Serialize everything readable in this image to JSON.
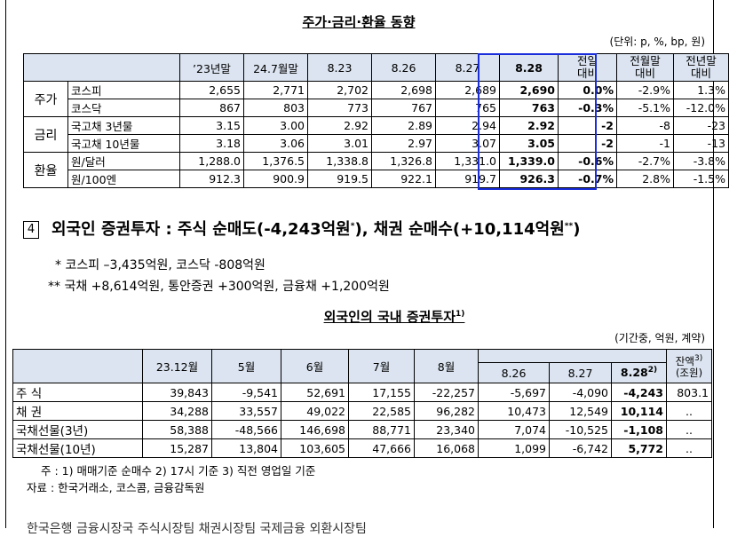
{
  "t1": {
    "title": "주가·금리·환율 동향",
    "unit": "(단위: p, %, bp, 원)",
    "headers": [
      "’23년말",
      "24.7월말",
      "8.23",
      "8.26",
      "8.27",
      "8.28",
      "전일\n대비",
      "전월말\n대비",
      "전년말\n대비"
    ],
    "groups": [
      {
        "cat": "주가",
        "rows": [
          {
            "name": "코스피",
            "vals": [
              "2,655",
              "2,771",
              "2,702",
              "2,698",
              "2,689",
              "2,690",
              "0.0%",
              "-2.9%",
              "1.3%"
            ]
          },
          {
            "name": "코스닥",
            "vals": [
              "867",
              "803",
              "773",
              "767",
              "765",
              "763",
              "-0.3%",
              "-5.1%",
              "-12.0%"
            ]
          }
        ]
      },
      {
        "cat": "금리",
        "rows": [
          {
            "name": "국고채 3년물",
            "vals": [
              "3.15",
              "3.00",
              "2.92",
              "2.89",
              "2.94",
              "2.92",
              "-2",
              "-8",
              "-23"
            ]
          },
          {
            "name": "국고채 10년물",
            "vals": [
              "3.18",
              "3.06",
              "3.01",
              "2.97",
              "3.07",
              "3.05",
              "-2",
              "-1",
              "-13"
            ]
          }
        ]
      },
      {
        "cat": "환율",
        "rows": [
          {
            "name": "원/달러",
            "vals": [
              "1,288.0",
              "1,376.5",
              "1,338.8",
              "1,326.8",
              "1,331.0",
              "1,339.0",
              "-0.6%",
              "-2.7%",
              "-3.8%"
            ]
          },
          {
            "name": "원/100엔",
            "vals": [
              "912.3",
              "900.9",
              "919.5",
              "922.1",
              "919.7",
              "926.3",
              "-0.7%",
              "2.8%",
              "-1.5%"
            ]
          }
        ]
      }
    ]
  },
  "sec4": {
    "num": "4",
    "text_a": "외국인 증권투자 : 주식 순매도(-4,243억원",
    "sup_a": "*",
    "text_b": "), 채권 순매수(+10,114억원",
    "sup_b": "**",
    "text_c": ")"
  },
  "notes": [
    "* 코스피 –3,435억원, 코스닥 -808억원",
    "** 국채 +8,614억원, 통안증권 +300억원, 금융채 +1,200억원"
  ],
  "t2": {
    "title": "외국인의 국내 증권투자",
    "title_sup": "1)",
    "unit": "(기간중, 억원, 계약)",
    "headers": [
      "23.12월",
      "5월",
      "6월",
      "7월",
      "8월"
    ],
    "subheaders": [
      "8.26",
      "8.27",
      "8.28"
    ],
    "sub_sup": "2)",
    "balance": "잔액",
    "balance_sup": "3)",
    "balance_unit": "(조원)",
    "rows": [
      {
        "name": "주  식",
        "vals": [
          "39,843",
          "-9,541",
          "52,691",
          "17,155",
          "-22,257",
          "-5,697",
          "-4,090",
          "-4,243",
          "803.1"
        ]
      },
      {
        "name": "채  권",
        "vals": [
          "34,288",
          "33,557",
          "49,022",
          "22,585",
          "96,282",
          "10,473",
          "12,549",
          "10,114",
          ".."
        ]
      },
      {
        "name": "국채선물(3년)",
        "vals": [
          "58,388",
          "-48,566",
          "146,698",
          "88,771",
          "23,340",
          "7,074",
          "-10,525",
          "-1,108",
          ".."
        ]
      },
      {
        "name": "국채선물(10년)",
        "vals": [
          "15,287",
          "13,804",
          "103,605",
          "47,666",
          "16,068",
          "1,099",
          "-6,742",
          "5,772",
          ".."
        ]
      }
    ]
  },
  "footnotes": [
    "주 : 1) 매매기준 순매수     2) 17시 기준     3) 직전 영업일 기준",
    "자료 : 한국거래소, 코스콤, 금융감독원"
  ],
  "bottom_partial": "한국은행 금융시장국 주식시장팀                    채권시장팀              국제금융 외환시장팀"
}
